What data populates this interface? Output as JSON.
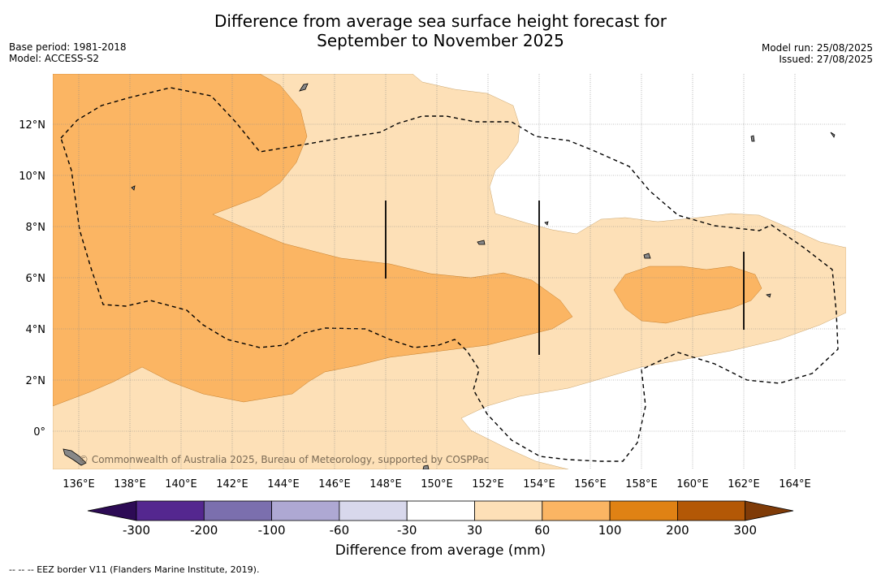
{
  "title_line1": "Difference from average sea surface height forecast for",
  "title_line2": "September to November 2025",
  "base_period": "Base period: 1981-2018",
  "model": "Model: ACCESS-S2",
  "model_run": "Model run: 25/08/2025",
  "issued": "Issued: 27/08/2025",
  "credit": "© Commonwealth of Australia 2025, Bureau of Meteorology, supported by COSPPac",
  "legend_footnote": "--  --  -- EEZ border V11 (Flanders Marine Institute, 2019).",
  "map_data": {
    "lat_labels": [
      "12°N",
      "10°N",
      "8°N",
      "6°N",
      "4°N",
      "2°N",
      "0°"
    ],
    "lon_labels": [
      "136°E",
      "138°E",
      "140°E",
      "142°E",
      "144°E",
      "146°E",
      "148°E",
      "150°E",
      "152°E",
      "154°E",
      "156°E",
      "158°E",
      "160°E",
      "162°E",
      "164°E"
    ],
    "lon_range": [
      135,
      166
    ],
    "lat_range": [
      -1.5,
      14
    ]
  },
  "colorbar": {
    "title": "Difference from average (mm)",
    "tick_labels": [
      "-300",
      "-200",
      "-100",
      "-60",
      "-30",
      "30",
      "60",
      "100",
      "200",
      "300"
    ],
    "colors": [
      "#2d0b55",
      "#54278f",
      "#7b6fae",
      "#aea8d3",
      "#d8d8ec",
      "#ffffff",
      "#fde0b7",
      "#fbb563",
      "#e08214",
      "#b35806",
      "#7f3b08"
    ]
  }
}
